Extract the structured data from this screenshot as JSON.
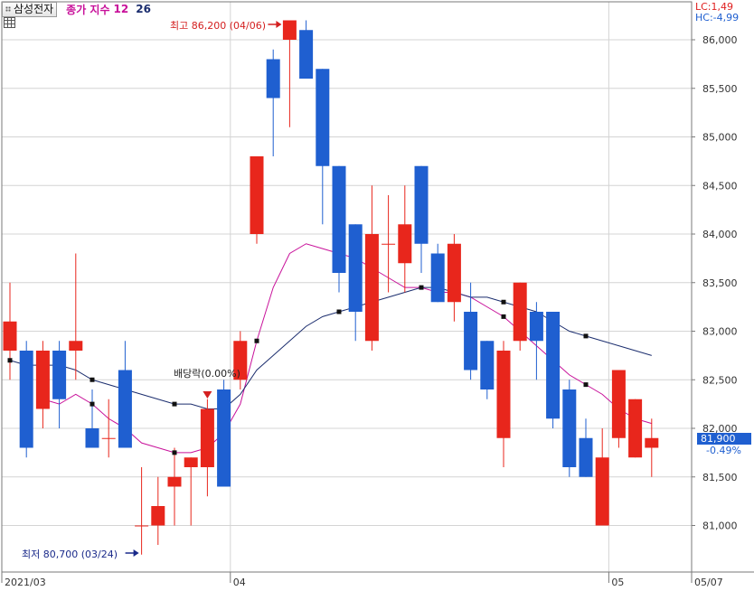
{
  "header": {
    "stock_name": "삼성전자",
    "legend_close": "종가 지수",
    "ma_short_label": "12",
    "ma_long_label": "26"
  },
  "status": {
    "lc": "LC:1,49",
    "hc": "HC:-4,99",
    "last_price": "81,900",
    "last_change": "-0.49%"
  },
  "annotations": {
    "high": "최고 86,200 (04/06)",
    "low": "최저 80,700 (03/24)",
    "dividend": "배당락(0.00%)"
  },
  "colors": {
    "up": "#e8261c",
    "down": "#1f5fd0",
    "ma_short": "#c8119a",
    "ma_long": "#1b2d6e",
    "grid": "#d4d4d4",
    "axis": "#7a7a7a"
  },
  "chart_data": {
    "type": "candlestick",
    "ylim": [
      80500,
      86250
    ],
    "y_ticks": [
      "81,000",
      "81,500",
      "82,000",
      "82,500",
      "83,000",
      "83,500",
      "84,000",
      "84,500",
      "85,000",
      "85,500",
      "86,000"
    ],
    "x_labels": [
      {
        "index": 0,
        "text": "2021/03"
      },
      {
        "index": 14,
        "text": "04"
      },
      {
        "index": 37,
        "text": "05"
      },
      {
        "index": 43,
        "text": "05/07"
      }
    ],
    "candles": [
      {
        "o": 82800,
        "h": 83500,
        "l": 82500,
        "c": 83100
      },
      {
        "o": 82800,
        "h": 82900,
        "l": 81700,
        "c": 81800
      },
      {
        "o": 82200,
        "h": 82900,
        "l": 82000,
        "c": 82800
      },
      {
        "o": 82800,
        "h": 82900,
        "l": 82000,
        "c": 82300
      },
      {
        "o": 82800,
        "h": 83800,
        "l": 82500,
        "c": 82900
      },
      {
        "o": 82000,
        "h": 82400,
        "l": 81800,
        "c": 81800
      },
      {
        "o": 81900,
        "h": 82300,
        "l": 81700,
        "c": 81900
      },
      {
        "o": 82600,
        "h": 82900,
        "l": 81800,
        "c": 81800
      },
      {
        "o": 81000,
        "h": 81600,
        "l": 80700,
        "c": 81000
      },
      {
        "o": 81000,
        "h": 81500,
        "l": 80800,
        "c": 81200
      },
      {
        "o": 81400,
        "h": 81800,
        "l": 81000,
        "c": 81500
      },
      {
        "o": 81600,
        "h": 81700,
        "l": 81000,
        "c": 81700
      },
      {
        "o": 81600,
        "h": 82300,
        "l": 81300,
        "c": 82200
      },
      {
        "o": 82400,
        "h": 82500,
        "l": 81400,
        "c": 81400
      },
      {
        "o": 82500,
        "h": 83000,
        "l": 82400,
        "c": 82900
      },
      {
        "o": 84000,
        "h": 84800,
        "l": 83900,
        "c": 84800
      },
      {
        "o": 85800,
        "h": 85900,
        "l": 84800,
        "c": 85400
      },
      {
        "o": 86000,
        "h": 86200,
        "l": 85100,
        "c": 86200
      },
      {
        "o": 86100,
        "h": 86200,
        "l": 85600,
        "c": 85600
      },
      {
        "o": 85700,
        "h": 85700,
        "l": 84100,
        "c": 84700
      },
      {
        "o": 84700,
        "h": 84700,
        "l": 83400,
        "c": 83600
      },
      {
        "o": 84100,
        "h": 84100,
        "l": 82900,
        "c": 83200
      },
      {
        "o": 82900,
        "h": 84500,
        "l": 82800,
        "c": 84000
      },
      {
        "o": 83900,
        "h": 84400,
        "l": 83400,
        "c": 83900
      },
      {
        "o": 83700,
        "h": 84500,
        "l": 83400,
        "c": 84100
      },
      {
        "o": 84700,
        "h": 84700,
        "l": 83600,
        "c": 83900
      },
      {
        "o": 83800,
        "h": 83900,
        "l": 83300,
        "c": 83300
      },
      {
        "o": 83300,
        "h": 84000,
        "l": 83100,
        "c": 83900
      },
      {
        "o": 83200,
        "h": 83500,
        "l": 82500,
        "c": 82600
      },
      {
        "o": 82900,
        "h": 82900,
        "l": 82300,
        "c": 82400
      },
      {
        "o": 81900,
        "h": 82900,
        "l": 81600,
        "c": 82800
      },
      {
        "o": 82900,
        "h": 83500,
        "l": 82800,
        "c": 83500
      },
      {
        "o": 83200,
        "h": 83300,
        "l": 82500,
        "c": 82900
      },
      {
        "o": 83200,
        "h": 83200,
        "l": 82000,
        "c": 82100
      },
      {
        "o": 82400,
        "h": 82500,
        "l": 81500,
        "c": 81600
      },
      {
        "o": 81900,
        "h": 82100,
        "l": 81500,
        "c": 81500
      },
      {
        "o": 81000,
        "h": 82000,
        "l": 81000,
        "c": 81700
      },
      {
        "o": 81900,
        "h": 82600,
        "l": 81800,
        "c": 82600
      },
      {
        "o": 81700,
        "h": 82300,
        "l": 81700,
        "c": 82300
      },
      {
        "o": 81800,
        "h": 82100,
        "l": 81500,
        "c": 81900
      }
    ],
    "ma12": [
      null,
      null,
      82300,
      82250,
      82350,
      82250,
      82100,
      82000,
      81850,
      81800,
      81750,
      81750,
      81800,
      81950,
      82250,
      82900,
      83450,
      83800,
      83900,
      83850,
      83800,
      83750,
      83650,
      83550,
      83450,
      83450,
      83400,
      83400,
      83350,
      83250,
      83150,
      83000,
      82850,
      82700,
      82550,
      82450,
      82350,
      82200,
      82100,
      82050
    ],
    "ma26": [
      82700,
      82650,
      82650,
      82650,
      82600,
      82500,
      82450,
      82400,
      82350,
      82300,
      82250,
      82250,
      82200,
      82200,
      82350,
      82600,
      82750,
      82900,
      83050,
      83150,
      83200,
      83250,
      83300,
      83350,
      83400,
      83450,
      83450,
      83400,
      83350,
      83350,
      83300,
      83250,
      83200,
      83100,
      83000,
      82950,
      82900,
      82850,
      82800,
      82750
    ],
    "markers": [
      {
        "series": "ma26",
        "index": 0
      },
      {
        "series": "ma12",
        "index": 0
      },
      {
        "series": "ma26",
        "index": 5
      },
      {
        "series": "ma12",
        "index": 5
      },
      {
        "series": "ma26",
        "index": 10
      },
      {
        "series": "ma12",
        "index": 10
      },
      {
        "series": "ma12",
        "index": 15
      },
      {
        "series": "ma26",
        "index": 20
      },
      {
        "series": "ma12",
        "index": 25
      },
      {
        "series": "ma26",
        "index": 30
      },
      {
        "series": "ma12",
        "index": 30
      },
      {
        "series": "ma26",
        "index": 35
      },
      {
        "series": "ma12",
        "index": 35
      }
    ]
  }
}
